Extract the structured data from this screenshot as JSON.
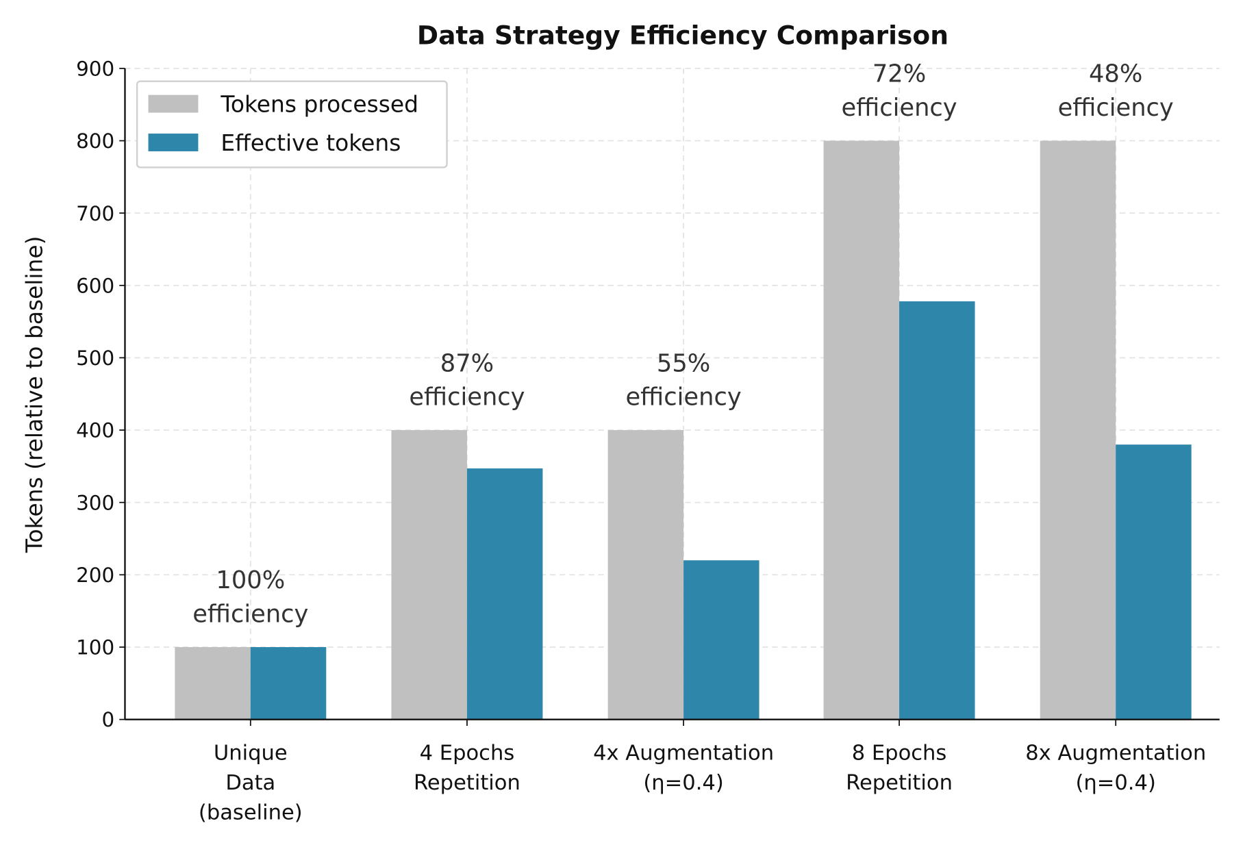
{
  "chart_data": {
    "type": "bar",
    "title": "Data Strategy Efficiency Comparison",
    "xlabel": "",
    "ylabel": "Tokens (relative to baseline)",
    "ylim": [
      0,
      900
    ],
    "yticks": [
      0,
      100,
      200,
      300,
      400,
      500,
      600,
      700,
      800,
      900
    ],
    "grid": true,
    "legend": "top-left",
    "categories": [
      [
        "Unique",
        "Data",
        "(baseline)"
      ],
      [
        "4 Epochs",
        "Repetition"
      ],
      [
        "4x Augmentation",
        "(η=0.4)"
      ],
      [
        "8 Epochs",
        "Repetition"
      ],
      [
        "8x Augmentation",
        "(η=0.4)"
      ]
    ],
    "series": [
      {
        "name": "Tokens processed",
        "color": "#c0c0c0",
        "values": [
          100,
          400,
          400,
          800,
          800
        ]
      },
      {
        "name": "Effective tokens",
        "color": "#2e86ab",
        "values": [
          100,
          347,
          220,
          578,
          380
        ]
      }
    ],
    "annotations": [
      [
        "100%",
        "efficiency"
      ],
      [
        "87%",
        "efficiency"
      ],
      [
        "55%",
        "efficiency"
      ],
      [
        "72%",
        "efficiency"
      ],
      [
        "48%",
        "efficiency"
      ]
    ]
  }
}
